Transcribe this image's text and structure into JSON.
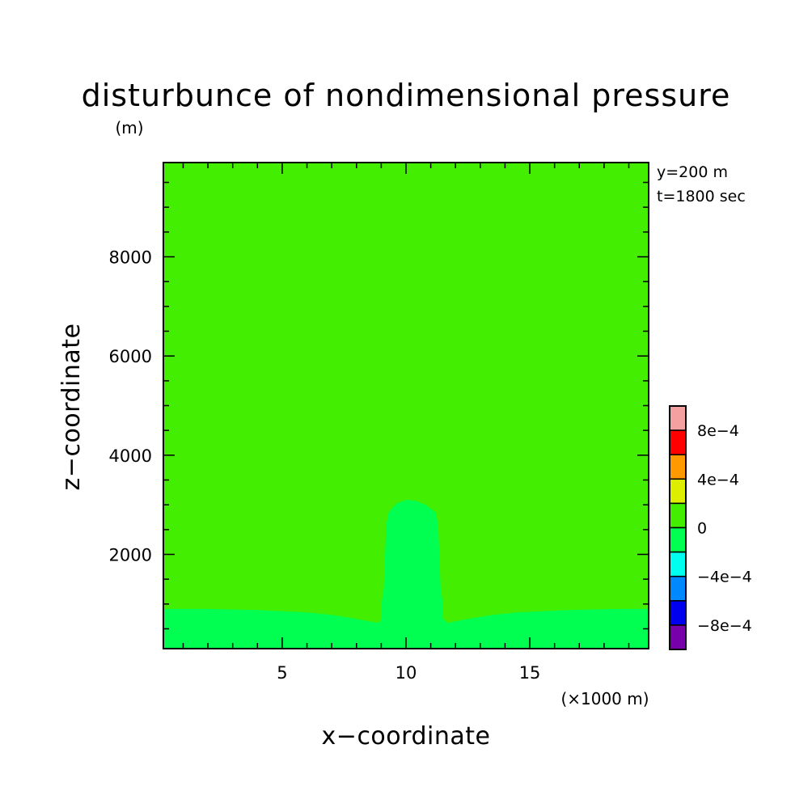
{
  "chart_data": {
    "type": "heatmap",
    "title": "disturbunce of nondimensional pressure",
    "z_unit": "(m)",
    "xlabel": "x−coordinate",
    "ylabel": "z−coordinate",
    "x_unit": "(×1000 m)",
    "xlim": [
      0.2,
      19.8
    ],
    "ylim": [
      100,
      9900
    ],
    "x_ticks": [
      {
        "value": 5,
        "label": "5"
      },
      {
        "value": 10,
        "label": "10"
      },
      {
        "value": 15,
        "label": "15"
      }
    ],
    "y_ticks": [
      {
        "value": 2000,
        "label": "2000"
      },
      {
        "value": 4000,
        "label": "4000"
      },
      {
        "value": 6000,
        "label": "6000"
      },
      {
        "value": 8000,
        "label": "8000"
      }
    ],
    "info": [
      "y=200 m",
      "t=1800 sec"
    ],
    "background_field": {
      "range": [
        0,
        0.0002
      ],
      "color": "#44ee00"
    },
    "contour_region": {
      "range": [
        -0.0002,
        0
      ],
      "color": "#00ff50",
      "boundary": [
        [
          0.2,
          100
        ],
        [
          0.2,
          900
        ],
        [
          2.0,
          900
        ],
        [
          4.0,
          880
        ],
        [
          6.0,
          830
        ],
        [
          7.0,
          780
        ],
        [
          8.0,
          700
        ],
        [
          8.5,
          650
        ],
        [
          8.9,
          620
        ],
        [
          9.0,
          700
        ],
        [
          9.0,
          1000
        ],
        [
          9.1,
          1300
        ],
        [
          9.2,
          2600
        ],
        [
          9.3,
          2850
        ],
        [
          9.6,
          3020
        ],
        [
          10.0,
          3100
        ],
        [
          10.4,
          3080
        ],
        [
          10.8,
          3000
        ],
        [
          11.2,
          2850
        ],
        [
          11.3,
          2600
        ],
        [
          11.4,
          1300
        ],
        [
          11.5,
          1000
        ],
        [
          11.5,
          700
        ],
        [
          11.7,
          620
        ],
        [
          12.0,
          650
        ],
        [
          12.5,
          700
        ],
        [
          13.5,
          780
        ],
        [
          14.5,
          830
        ],
        [
          16.5,
          880
        ],
        [
          18.5,
          900
        ],
        [
          19.8,
          900
        ],
        [
          19.8,
          100
        ]
      ]
    },
    "colorbar": {
      "levels": [
        {
          "range": [
            0.0008,
            0.001
          ],
          "color": "#f5a0a0"
        },
        {
          "range": [
            0.0006,
            0.0008
          ],
          "color": "#ff0000"
        },
        {
          "range": [
            0.0004,
            0.0006
          ],
          "color": "#ff9900"
        },
        {
          "range": [
            0.0002,
            0.0004
          ],
          "color": "#ddee00"
        },
        {
          "range": [
            0,
            0.0002
          ],
          "color": "#44ee00"
        },
        {
          "range": [
            -0.0002,
            0
          ],
          "color": "#00ff50"
        },
        {
          "range": [
            -0.0004,
            -0.0002
          ],
          "color": "#00ffee"
        },
        {
          "range": [
            -0.0006,
            -0.0004
          ],
          "color": "#0088ff"
        },
        {
          "range": [
            -0.0008,
            -0.0006
          ],
          "color": "#0000ee"
        },
        {
          "range": [
            -0.001,
            -0.0008
          ],
          "color": "#7700aa"
        }
      ],
      "labels": [
        {
          "value": 0.0008,
          "label": "8e−4"
        },
        {
          "value": 0.0004,
          "label": "4e−4"
        },
        {
          "value": 0,
          "label": "0"
        },
        {
          "value": -0.0004,
          "label": "−4e−4"
        },
        {
          "value": -0.0008,
          "label": "−8e−4"
        }
      ]
    }
  }
}
